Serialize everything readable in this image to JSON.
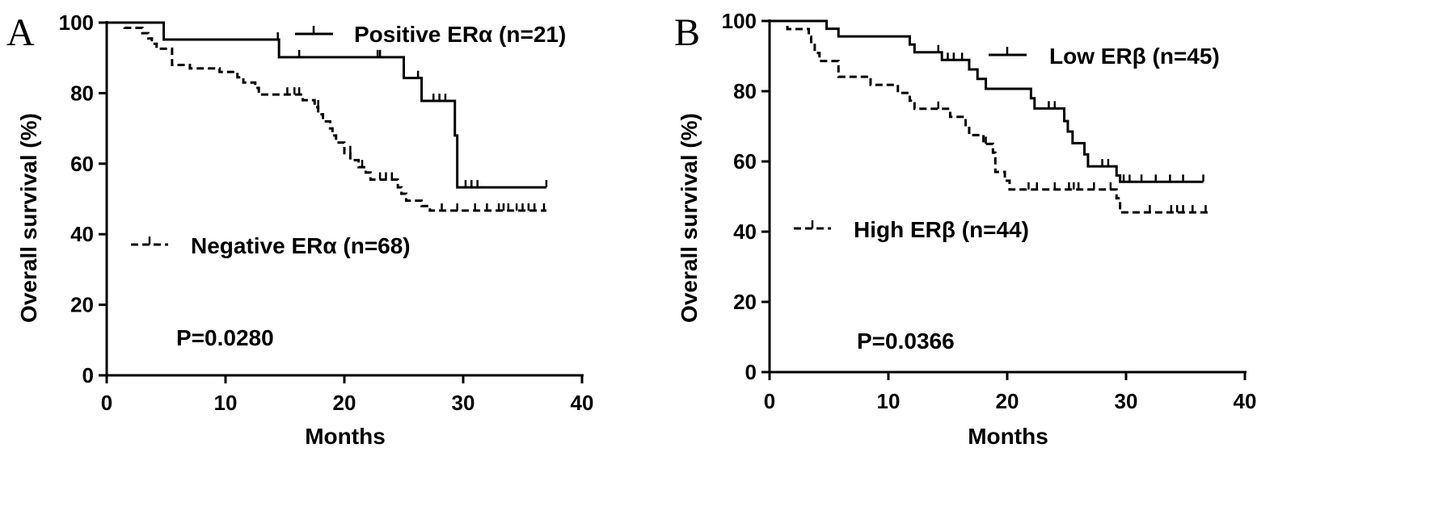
{
  "chart_data": [
    {
      "panel": "A",
      "type": "line",
      "subtype": "kaplan-meier step",
      "title": "",
      "xlabel": "Months",
      "ylabel": "Overall survival (%)",
      "xlim": [
        0,
        40
      ],
      "ylim": [
        0,
        100
      ],
      "x_ticks": [
        0,
        10,
        20,
        30,
        40
      ],
      "y_ticks": [
        0,
        20,
        40,
        60,
        80,
        100
      ],
      "grid": false,
      "annotation": "P=0.0280",
      "series": [
        {
          "name": "Positive ERα (n=21)",
          "style": "solid",
          "legend_placement": "top-right",
          "steps": [
            [
              0,
              100
            ],
            [
              4.8,
              95.2
            ],
            [
              14.5,
              90.2
            ],
            [
              25,
              84.3
            ],
            [
              26.5,
              77.8
            ],
            [
              29.3,
              68
            ],
            [
              29.5,
              53.3
            ],
            [
              37,
              53.3
            ]
          ],
          "censored": [
            [
              14.4,
              95.2
            ],
            [
              16.2,
              90.2
            ],
            [
              22.8,
              90.2
            ],
            [
              23.0,
              90.2
            ],
            [
              26.2,
              84.3
            ],
            [
              27.5,
              77.8
            ],
            [
              28.0,
              77.8
            ],
            [
              28.5,
              77.8
            ],
            [
              30.2,
              53.3
            ],
            [
              30.7,
              53.3
            ],
            [
              31.2,
              53.3
            ],
            [
              37.0,
              53.3
            ]
          ]
        },
        {
          "name": "Negative ERα (n=68)",
          "style": "dashed",
          "legend_placement": "center-left",
          "steps": [
            [
              0,
              100
            ],
            [
              1.5,
              98.5
            ],
            [
              3,
              97
            ],
            [
              3.5,
              95.5
            ],
            [
              3.8,
              94
            ],
            [
              4.2,
              92.6
            ],
            [
              5.5,
              88
            ],
            [
              7,
              87
            ],
            [
              9.5,
              86
            ],
            [
              11,
              84.5
            ],
            [
              11.5,
              83
            ],
            [
              12.5,
              81.5
            ],
            [
              12.8,
              79.6
            ],
            [
              16.5,
              78
            ],
            [
              17.5,
              76
            ],
            [
              17.8,
              74
            ],
            [
              18.2,
              72
            ],
            [
              18.8,
              70
            ],
            [
              19,
              68
            ],
            [
              19.3,
              66
            ],
            [
              20,
              63
            ],
            [
              20.5,
              61
            ],
            [
              21.2,
              59
            ],
            [
              21.8,
              57.5
            ],
            [
              22.2,
              55.5
            ],
            [
              24.5,
              53.3
            ],
            [
              24.8,
              51.5
            ],
            [
              25.2,
              49.5
            ],
            [
              26.5,
              48
            ],
            [
              27.2,
              46.7
            ],
            [
              37,
              46.7
            ]
          ],
          "censored": [
            [
              15.2,
              79.6
            ],
            [
              15.8,
              79.6
            ],
            [
              16.2,
              79.6
            ],
            [
              17.8,
              76
            ],
            [
              20.5,
              63
            ],
            [
              21.5,
              59
            ],
            [
              23.0,
              55.5
            ],
            [
              23.5,
              55.5
            ],
            [
              24.0,
              55.5
            ],
            [
              28.2,
              46.7
            ],
            [
              29.5,
              46.7
            ],
            [
              31.0,
              46.7
            ],
            [
              32.0,
              46.7
            ],
            [
              33.0,
              46.7
            ],
            [
              33.4,
              46.7
            ],
            [
              33.8,
              46.7
            ],
            [
              34.5,
              46.7
            ],
            [
              35.0,
              46.7
            ],
            [
              35.5,
              46.7
            ],
            [
              36.0,
              46.7
            ],
            [
              36.8,
              46.7
            ]
          ]
        }
      ]
    },
    {
      "panel": "B",
      "type": "line",
      "subtype": "kaplan-meier step",
      "title": "",
      "xlabel": "Months",
      "ylabel": "Overall survival (%)",
      "xlim": [
        0,
        40
      ],
      "ylim": [
        0,
        100
      ],
      "x_ticks": [
        0,
        10,
        20,
        30,
        40
      ],
      "y_ticks": [
        0,
        20,
        40,
        60,
        80,
        100
      ],
      "grid": false,
      "annotation": "P=0.0366",
      "series": [
        {
          "name": "Low ERβ (n=45)",
          "style": "solid",
          "legend_placement": "top-right",
          "steps": [
            [
              0,
              100
            ],
            [
              4.8,
              97.8
            ],
            [
              5.8,
              95.6
            ],
            [
              11.8,
              93.3
            ],
            [
              12.2,
              91.1
            ],
            [
              14.5,
              88.9
            ],
            [
              16.8,
              86.2
            ],
            [
              17.5,
              83.5
            ],
            [
              18.2,
              80.7
            ],
            [
              22.0,
              78.0
            ],
            [
              22.3,
              75.1
            ],
            [
              24.8,
              71.5
            ],
            [
              25.1,
              68.5
            ],
            [
              25.5,
              65.2
            ],
            [
              26.5,
              62
            ],
            [
              26.8,
              58.6
            ],
            [
              29.2,
              56
            ],
            [
              29.5,
              54.2
            ],
            [
              36.5,
              54.2
            ]
          ],
          "censored": [
            [
              14.2,
              91.1
            ],
            [
              15.0,
              88.9
            ],
            [
              15.5,
              88.9
            ],
            [
              16.2,
              88.9
            ],
            [
              23.5,
              75.1
            ],
            [
              24.0,
              75.1
            ],
            [
              28.0,
              58.6
            ],
            [
              28.5,
              58.6
            ],
            [
              29.8,
              54.2
            ],
            [
              30.3,
              54.2
            ],
            [
              31.3,
              54.2
            ],
            [
              32.5,
              54.2
            ],
            [
              33.7,
              54.2
            ],
            [
              34.8,
              54.2
            ],
            [
              36.5,
              54.2
            ]
          ]
        },
        {
          "name": "High ERβ (n=44)",
          "style": "dashed",
          "legend_placement": "center-left",
          "steps": [
            [
              0,
              100
            ],
            [
              1.5,
              97.7
            ],
            [
              3.3,
              95.5
            ],
            [
              3.5,
              93.2
            ],
            [
              3.8,
              90.9
            ],
            [
              4.2,
              88.6
            ],
            [
              5.8,
              84.1
            ],
            [
              8.5,
              81.8
            ],
            [
              10.8,
              79.5
            ],
            [
              11.8,
              77.3
            ],
            [
              12.2,
              75.0
            ],
            [
              15.2,
              72.7
            ],
            [
              16.5,
              70.0
            ],
            [
              16.8,
              67.5
            ],
            [
              18.0,
              65.0
            ],
            [
              18.8,
              62.5
            ],
            [
              19.0,
              57.0
            ],
            [
              19.8,
              54.5
            ],
            [
              20.2,
              52.0
            ],
            [
              29.2,
              49.5
            ],
            [
              29.5,
              45.5
            ],
            [
              37,
              45.5
            ]
          ],
          "censored": [
            [
              14.2,
              75.0
            ],
            [
              18.2,
              65.0
            ],
            [
              21.8,
              52.0
            ],
            [
              22.5,
              52.0
            ],
            [
              24.0,
              52.0
            ],
            [
              25.2,
              52.0
            ],
            [
              25.6,
              52.0
            ],
            [
              26.0,
              52.0
            ],
            [
              27.3,
              52.0
            ],
            [
              28.7,
              52.0
            ],
            [
              32.0,
              45.5
            ],
            [
              33.8,
              45.5
            ],
            [
              34.3,
              45.5
            ],
            [
              34.8,
              45.5
            ],
            [
              35.6,
              45.5
            ],
            [
              36.7,
              45.5
            ]
          ]
        }
      ]
    }
  ],
  "panels": [
    {
      "letter": "A",
      "xlabel": "Months",
      "ylabel": "Overall survival (%)",
      "annotation": "P=0.0280",
      "legend": {
        "solid": "Positive ERα (n=21)",
        "dashed": "Negative ERα (n=68)"
      }
    },
    {
      "letter": "B",
      "xlabel": "Months",
      "ylabel": "Overall survival (%)",
      "annotation": "P=0.0366",
      "legend": {
        "solid": "Low ERβ (n=45)",
        "dashed": "High ERβ (n=44)"
      }
    }
  ]
}
